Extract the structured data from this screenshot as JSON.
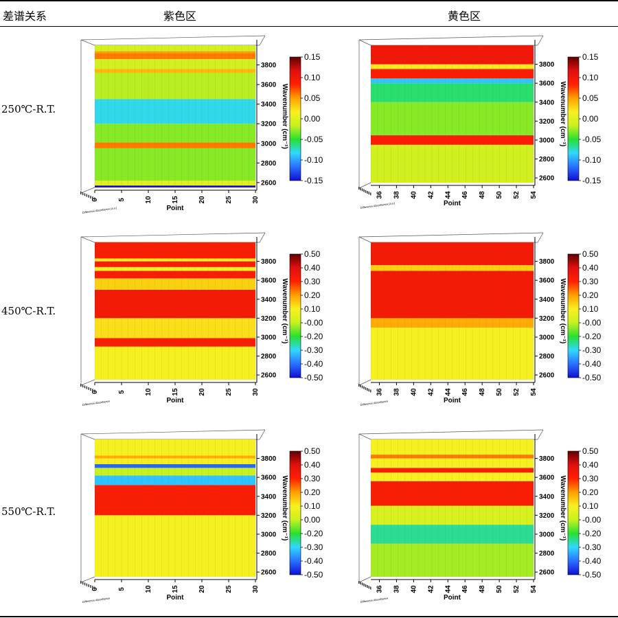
{
  "table": {
    "headers": [
      "差谱关系",
      "紫色区",
      "黄色区"
    ],
    "rows": [
      {
        "label": "250℃-R.T."
      },
      {
        "label": "450℃-R.T."
      },
      {
        "label": "550℃-R.T."
      }
    ]
  },
  "colorscale": [
    "#1010d0",
    "#2a70ff",
    "#30d8ff",
    "#28e030",
    "#c8f020",
    "#f8f020",
    "#ffa000",
    "#ff2000",
    "#e01010",
    "#600000"
  ],
  "chart_data": [
    {
      "type": "heatmap",
      "id": "r1-purple",
      "x": {
        "label": "Point",
        "ticks": [
          "0",
          "5",
          "10",
          "15",
          "20",
          "25",
          "30"
        ],
        "range": [
          0,
          30
        ]
      },
      "y": {
        "label": "Wavenumber (cm⁻¹)",
        "ticks": [
          "2600",
          "2800",
          "3000",
          "3200",
          "3400",
          "3600",
          "3800"
        ],
        "range": [
          2550,
          4000
        ]
      },
      "z": {
        "label": "Difference Absorbance (a.u.)",
        "ticks": [
          "-0.15",
          "-0.10",
          "-0.05",
          "0.00",
          "0.05",
          "0.10",
          "0.15"
        ],
        "range": [
          -0.15,
          0.15
        ]
      },
      "bands": [
        [
          2550,
          2570,
          -0.15
        ],
        [
          2570,
          2620,
          0.0
        ],
        [
          2620,
          2950,
          -0.03
        ],
        [
          2950,
          3010,
          0.06
        ],
        [
          3010,
          3200,
          -0.03
        ],
        [
          3200,
          3450,
          -0.08
        ],
        [
          3450,
          3720,
          -0.02
        ],
        [
          3720,
          3760,
          0.04
        ],
        [
          3760,
          3860,
          -0.01
        ],
        [
          3860,
          3920,
          0.06
        ],
        [
          3920,
          3940,
          0.05
        ],
        [
          3940,
          4000,
          -0.01
        ]
      ]
    },
    {
      "type": "heatmap",
      "id": "r1-yellow",
      "x": {
        "label": "Point",
        "ticks": [
          "36",
          "38",
          "40",
          "42",
          "44",
          "46",
          "48",
          "50",
          "52",
          "54"
        ],
        "range": [
          35,
          54
        ]
      },
      "y": {
        "label": "Wavenumber (cm⁻¹)",
        "ticks": [
          "2600",
          "2800",
          "3000",
          "3200",
          "3400",
          "3600",
          "3800"
        ],
        "range": [
          2550,
          4000
        ]
      },
      "z": {
        "label": "Difference Absorbance (a.u.)",
        "ticks": [
          "-0.15",
          "-0.10",
          "-0.05",
          "0.00",
          "0.05",
          "0.10",
          "0.15"
        ],
        "range": [
          -0.15,
          0.15
        ]
      },
      "bands": [
        [
          2550,
          2950,
          -0.01
        ],
        [
          2950,
          3050,
          0.09
        ],
        [
          3050,
          3400,
          -0.03
        ],
        [
          3400,
          3600,
          -0.06
        ],
        [
          3600,
          3650,
          -0.09
        ],
        [
          3650,
          3750,
          0.09
        ],
        [
          3750,
          3800,
          0.02
        ],
        [
          3800,
          4000,
          0.1
        ]
      ]
    },
    {
      "type": "heatmap",
      "id": "r2-purple",
      "x": {
        "label": "Point",
        "ticks": [
          "0",
          "5",
          "10",
          "15",
          "20",
          "25",
          "30"
        ],
        "range": [
          0,
          30
        ]
      },
      "y": {
        "label": "Wavenumber (cm⁻¹)",
        "ticks": [
          "2600",
          "2800",
          "3000",
          "3200",
          "3400",
          "3600",
          "3800"
        ],
        "range": [
          2550,
          4000
        ]
      },
      "z": {
        "label": "Difference Absorbance",
        "ticks": [
          "-0.50",
          "-0.40",
          "-0.30",
          "-0.20",
          "-0.00",
          "0.10",
          "0.20",
          "0.30",
          "0.40",
          "0.50"
        ],
        "range": [
          -0.5,
          0.5
        ]
      },
      "bands": [
        [
          2550,
          2900,
          0.05
        ],
        [
          2900,
          2990,
          0.3
        ],
        [
          2990,
          3200,
          0.08
        ],
        [
          3200,
          3500,
          0.32
        ],
        [
          3500,
          3620,
          0.1
        ],
        [
          3620,
          3700,
          0.3
        ],
        [
          3700,
          3740,
          0.05
        ],
        [
          3740,
          3800,
          0.3
        ],
        [
          3800,
          3830,
          0.05
        ],
        [
          3830,
          4000,
          0.3
        ]
      ]
    },
    {
      "type": "heatmap",
      "id": "r2-yellow",
      "x": {
        "label": "Point",
        "ticks": [
          "36",
          "38",
          "40",
          "42",
          "44",
          "46",
          "48",
          "50",
          "52",
          "54"
        ],
        "range": [
          35,
          54
        ]
      },
      "y": {
        "label": "Wavenumber (cm⁻¹)",
        "ticks": [
          "2600",
          "2800",
          "3000",
          "3200",
          "3400",
          "3600",
          "3800"
        ],
        "range": [
          2550,
          4000
        ]
      },
      "z": {
        "label": "Difference Absorbance",
        "ticks": [
          "-0.50",
          "-0.40",
          "-0.30",
          "-0.20",
          "-0.00",
          "0.10",
          "0.20",
          "0.30",
          "0.40",
          "0.50"
        ],
        "range": [
          -0.5,
          0.5
        ]
      },
      "bands": [
        [
          2550,
          3100,
          0.05
        ],
        [
          3100,
          3200,
          0.15
        ],
        [
          3200,
          3700,
          0.32
        ],
        [
          3700,
          3760,
          0.1
        ],
        [
          3760,
          4000,
          0.32
        ]
      ]
    },
    {
      "type": "heatmap",
      "id": "r3-purple",
      "x": {
        "label": "Point",
        "ticks": [
          "0",
          "5",
          "10",
          "15",
          "20",
          "25",
          "30"
        ],
        "range": [
          0,
          30
        ]
      },
      "y": {
        "label": "Wavenumber (cm⁻¹)",
        "ticks": [
          "2600",
          "2800",
          "3000",
          "3200",
          "3400",
          "3600",
          "3800"
        ],
        "range": [
          2550,
          4000
        ]
      },
      "z": {
        "label": "Difference Absorbance",
        "ticks": [
          "-0.50",
          "-0.40",
          "-0.30",
          "-0.20",
          "0.00",
          "0.10",
          "0.20",
          "0.30",
          "0.40",
          "0.50"
        ],
        "range": [
          -0.5,
          0.5
        ]
      },
      "bands": [
        [
          2550,
          3200,
          0.05
        ],
        [
          3200,
          3520,
          0.3
        ],
        [
          3520,
          3620,
          -0.3
        ],
        [
          3620,
          3700,
          -0.05
        ],
        [
          3700,
          3740,
          -0.4
        ],
        [
          3740,
          3800,
          0.05
        ],
        [
          3800,
          3830,
          0.15
        ],
        [
          3830,
          4000,
          0.05
        ]
      ]
    },
    {
      "type": "heatmap",
      "id": "r3-yellow",
      "x": {
        "label": "Point",
        "ticks": [
          "36",
          "38",
          "40",
          "42",
          "44",
          "46",
          "48",
          "50",
          "52",
          "54"
        ],
        "range": [
          35,
          54
        ]
      },
      "y": {
        "label": "Wavenumber (cm⁻¹)",
        "ticks": [
          "2600",
          "2800",
          "3000",
          "3200",
          "3400",
          "3600",
          "3800"
        ],
        "range": [
          2550,
          4000
        ]
      },
      "z": {
        "label": "Difference Absorbance",
        "ticks": [
          "-0.50",
          "-0.40",
          "-0.30",
          "-0.20",
          "-0.00",
          "0.10",
          "0.20",
          "0.30",
          "0.40",
          "0.50"
        ],
        "range": [
          -0.5,
          0.5
        ]
      },
      "bands": [
        [
          2550,
          2900,
          -0.08
        ],
        [
          2900,
          3100,
          -0.22
        ],
        [
          3100,
          3300,
          -0.02
        ],
        [
          3300,
          3560,
          0.3
        ],
        [
          3560,
          3650,
          0.05
        ],
        [
          3650,
          3700,
          0.3
        ],
        [
          3700,
          3800,
          0.05
        ],
        [
          3800,
          3840,
          0.2
        ],
        [
          3840,
          4000,
          0.05
        ]
      ]
    }
  ]
}
